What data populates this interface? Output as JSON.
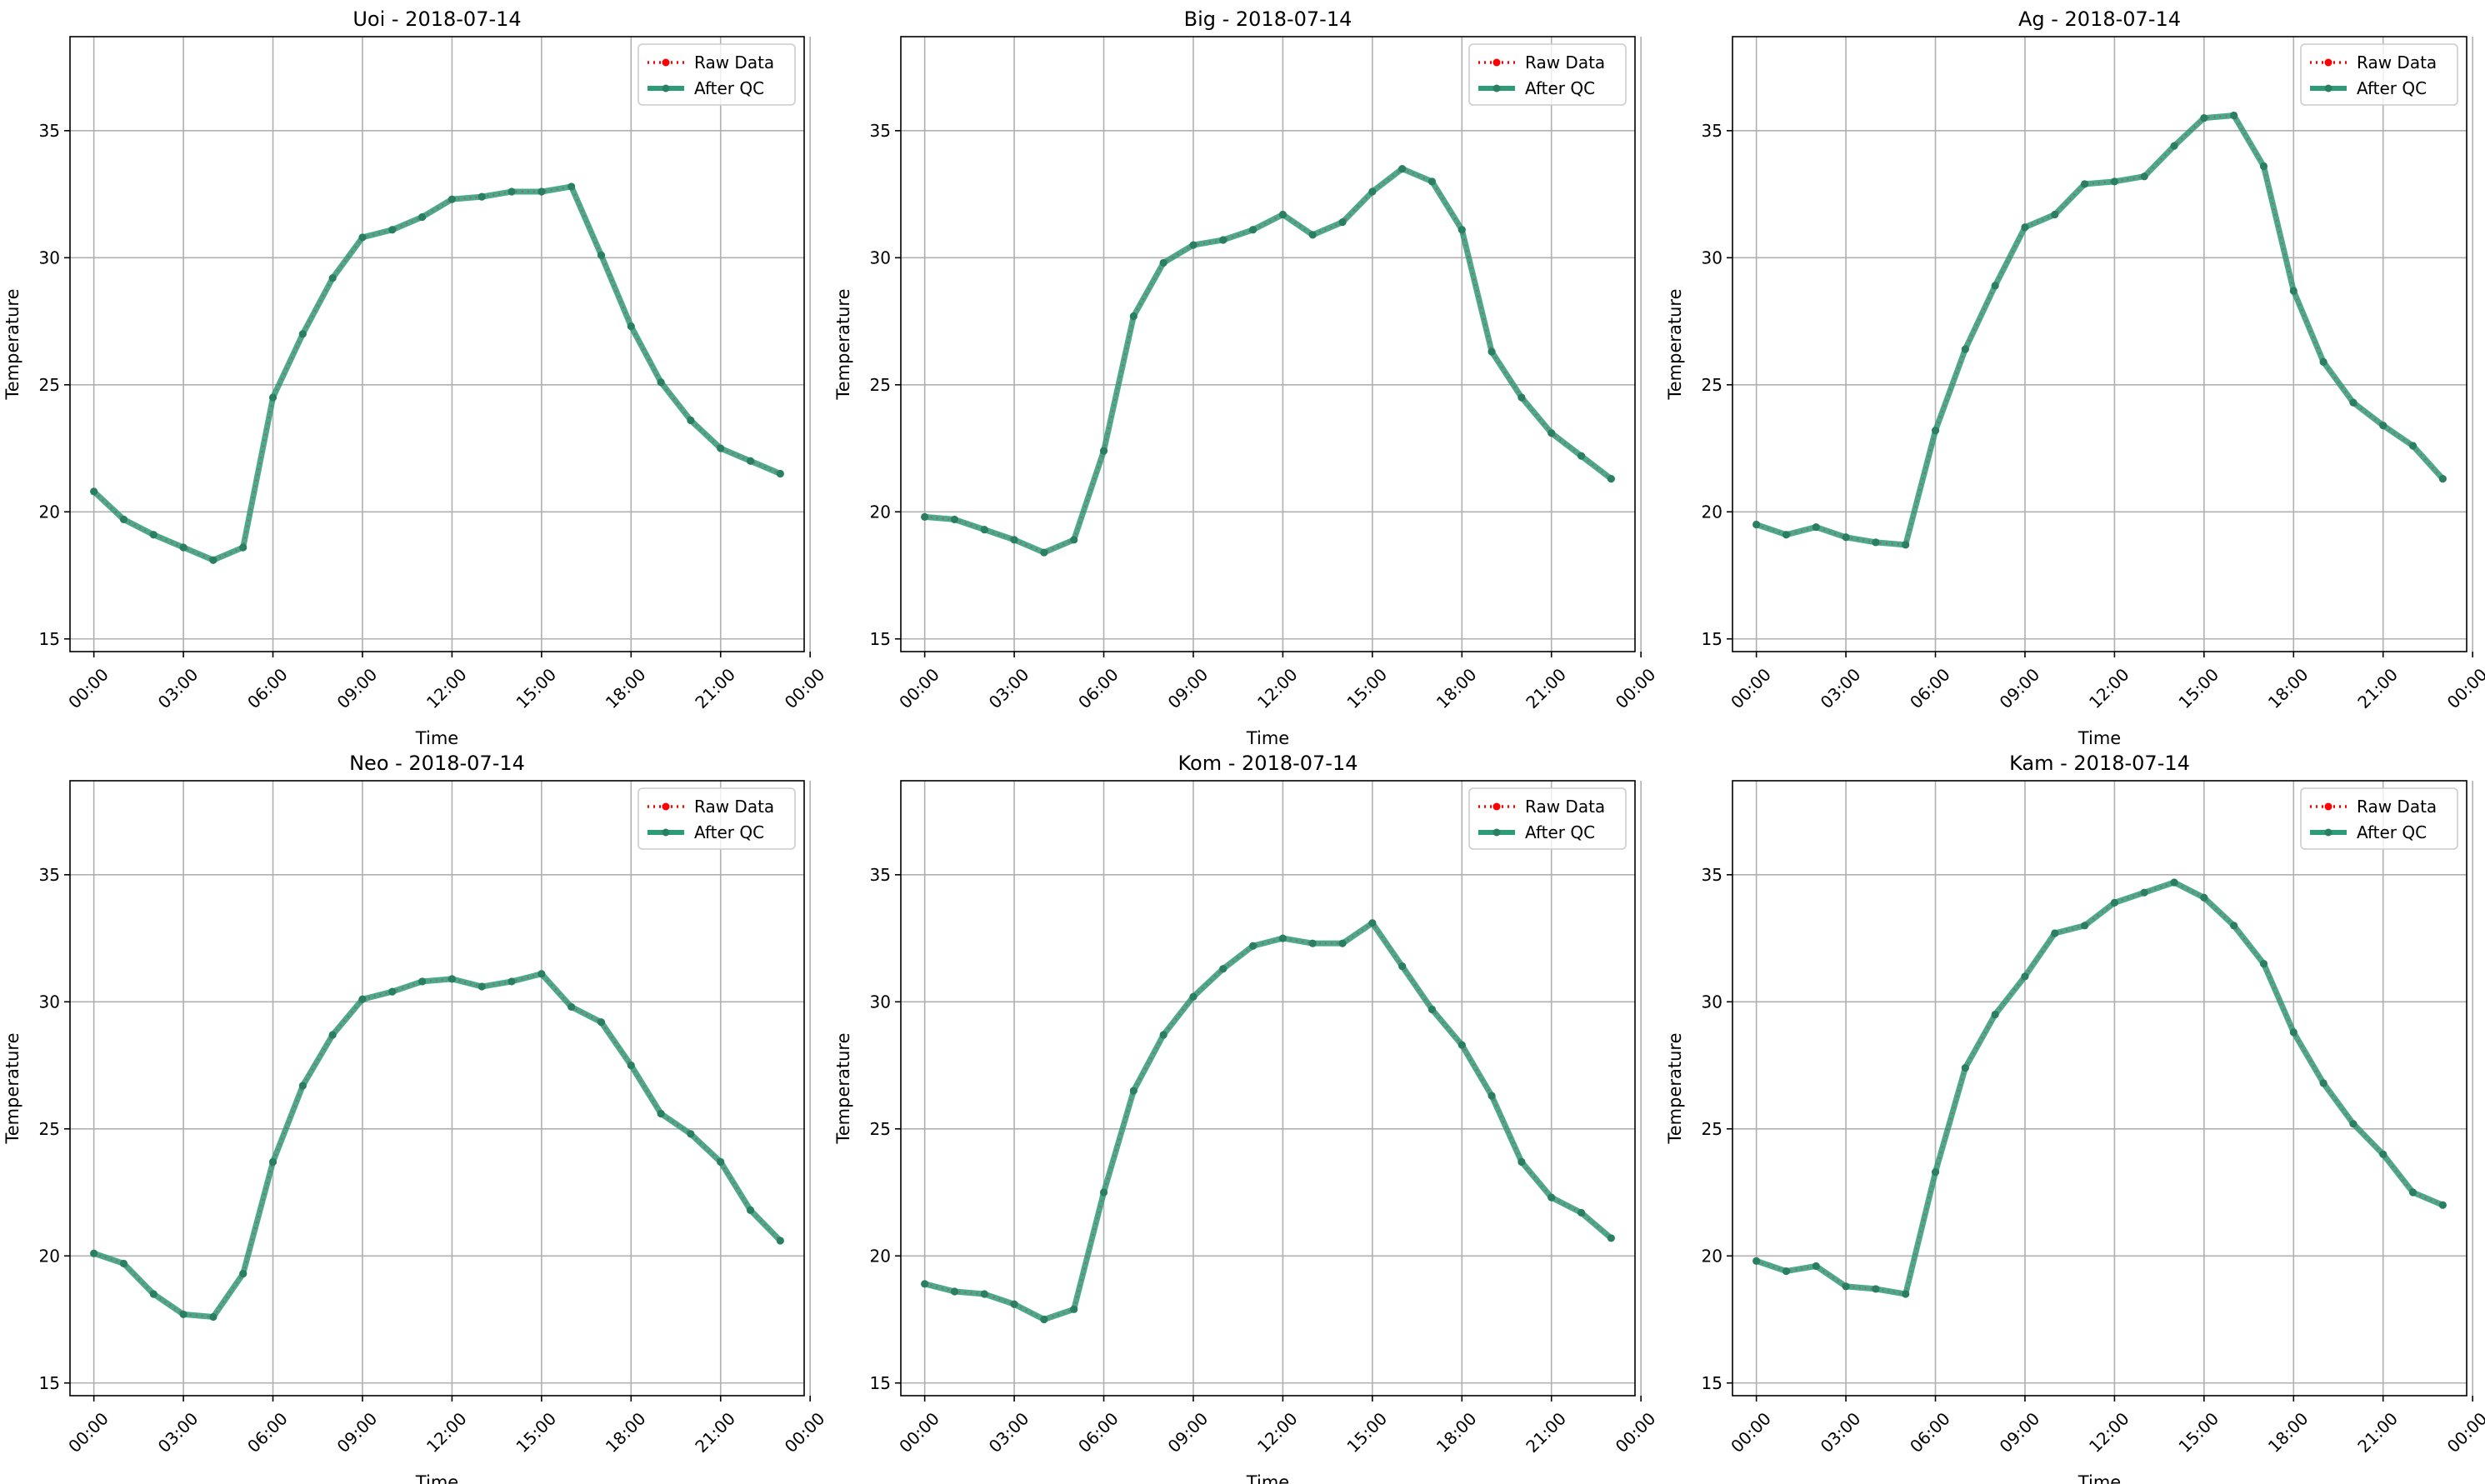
{
  "chart_data": [
    {
      "type": "line",
      "title": "Uoi - 2018-07-14",
      "xlabel": "Time",
      "ylabel": "Temperature",
      "x": [
        "00:00",
        "01:00",
        "02:00",
        "03:00",
        "04:00",
        "05:00",
        "06:00",
        "07:00",
        "08:00",
        "09:00",
        "10:00",
        "11:00",
        "12:00",
        "13:00",
        "14:00",
        "15:00",
        "16:00",
        "17:00",
        "18:00",
        "19:00",
        "20:00",
        "21:00",
        "22:00",
        "23:00"
      ],
      "xticks": [
        "00:00",
        "03:00",
        "06:00",
        "09:00",
        "12:00",
        "15:00",
        "18:00",
        "21:00",
        "00:00"
      ],
      "ylim": [
        14.5,
        38.7
      ],
      "yticks": [
        15,
        20,
        25,
        30,
        35
      ],
      "grid": true,
      "legend": "top-right",
      "series": [
        {
          "name": "Raw Data",
          "values": [
            20.8,
            19.7,
            19.1,
            18.6,
            18.1,
            18.6,
            24.5,
            27.0,
            29.2,
            30.8,
            31.1,
            31.6,
            32.3,
            32.4,
            32.6,
            32.6,
            32.8,
            30.1,
            27.3,
            25.1,
            23.6,
            22.5,
            22.0,
            21.5
          ]
        },
        {
          "name": "After QC",
          "values": [
            20.8,
            19.7,
            19.1,
            18.6,
            18.1,
            18.6,
            24.5,
            27.0,
            29.2,
            30.8,
            31.1,
            31.6,
            32.3,
            32.4,
            32.6,
            32.6,
            32.8,
            30.1,
            27.3,
            25.1,
            23.6,
            22.5,
            22.0,
            21.5
          ]
        }
      ]
    },
    {
      "type": "line",
      "title": "Big - 2018-07-14",
      "xlabel": "Time",
      "ylabel": "Temperature",
      "x": [
        "00:00",
        "01:00",
        "02:00",
        "03:00",
        "04:00",
        "05:00",
        "06:00",
        "07:00",
        "08:00",
        "09:00",
        "10:00",
        "11:00",
        "12:00",
        "13:00",
        "14:00",
        "15:00",
        "16:00",
        "17:00",
        "18:00",
        "19:00",
        "20:00",
        "21:00",
        "22:00",
        "23:00"
      ],
      "xticks": [
        "00:00",
        "03:00",
        "06:00",
        "09:00",
        "12:00",
        "15:00",
        "18:00",
        "21:00",
        "00:00"
      ],
      "ylim": [
        14.5,
        38.7
      ],
      "yticks": [
        15,
        20,
        25,
        30,
        35
      ],
      "grid": true,
      "legend": "top-right",
      "series": [
        {
          "name": "Raw Data",
          "values": [
            19.8,
            19.7,
            19.3,
            18.9,
            18.4,
            18.9,
            22.4,
            27.7,
            29.8,
            30.5,
            30.7,
            31.1,
            31.7,
            30.9,
            31.4,
            32.6,
            33.5,
            33.0,
            31.1,
            26.3,
            24.5,
            23.1,
            22.2,
            21.3
          ]
        },
        {
          "name": "After QC",
          "values": [
            19.8,
            19.7,
            19.3,
            18.9,
            18.4,
            18.9,
            22.4,
            27.7,
            29.8,
            30.5,
            30.7,
            31.1,
            31.7,
            30.9,
            31.4,
            32.6,
            33.5,
            33.0,
            31.1,
            26.3,
            24.5,
            23.1,
            22.2,
            21.3
          ]
        }
      ]
    },
    {
      "type": "line",
      "title": "Ag - 2018-07-14",
      "xlabel": "Time",
      "ylabel": "Temperature",
      "x": [
        "00:00",
        "01:00",
        "02:00",
        "03:00",
        "04:00",
        "05:00",
        "06:00",
        "07:00",
        "08:00",
        "09:00",
        "10:00",
        "11:00",
        "12:00",
        "13:00",
        "14:00",
        "15:00",
        "16:00",
        "17:00",
        "18:00",
        "19:00",
        "20:00",
        "21:00",
        "22:00",
        "23:00"
      ],
      "xticks": [
        "00:00",
        "03:00",
        "06:00",
        "09:00",
        "12:00",
        "15:00",
        "18:00",
        "21:00",
        "00:00"
      ],
      "ylim": [
        14.5,
        38.7
      ],
      "yticks": [
        15,
        20,
        25,
        30,
        35
      ],
      "grid": true,
      "legend": "top-right",
      "series": [
        {
          "name": "Raw Data",
          "values": [
            19.5,
            19.1,
            19.4,
            19.0,
            18.8,
            18.7,
            23.2,
            26.4,
            28.9,
            31.2,
            31.7,
            32.9,
            33.0,
            33.2,
            34.4,
            35.5,
            35.6,
            33.6,
            28.7,
            25.9,
            24.3,
            23.4,
            22.6,
            21.3
          ]
        },
        {
          "name": "After QC",
          "values": [
            19.5,
            19.1,
            19.4,
            19.0,
            18.8,
            18.7,
            23.2,
            26.4,
            28.9,
            31.2,
            31.7,
            32.9,
            33.0,
            33.2,
            34.4,
            35.5,
            35.6,
            33.6,
            28.7,
            25.9,
            24.3,
            23.4,
            22.6,
            21.3
          ]
        }
      ]
    },
    {
      "type": "line",
      "title": "Neo - 2018-07-14",
      "xlabel": "Time",
      "ylabel": "Temperature",
      "x": [
        "00:00",
        "01:00",
        "02:00",
        "03:00",
        "04:00",
        "05:00",
        "06:00",
        "07:00",
        "08:00",
        "09:00",
        "10:00",
        "11:00",
        "12:00",
        "13:00",
        "14:00",
        "15:00",
        "16:00",
        "17:00",
        "18:00",
        "19:00",
        "20:00",
        "21:00",
        "22:00",
        "23:00"
      ],
      "xticks": [
        "00:00",
        "03:00",
        "06:00",
        "09:00",
        "12:00",
        "15:00",
        "18:00",
        "21:00",
        "00:00"
      ],
      "ylim": [
        14.5,
        38.7
      ],
      "yticks": [
        15,
        20,
        25,
        30,
        35
      ],
      "grid": true,
      "legend": "top-right",
      "series": [
        {
          "name": "Raw Data",
          "values": [
            20.1,
            19.7,
            18.5,
            17.7,
            17.6,
            19.3,
            23.7,
            26.7,
            28.7,
            30.1,
            30.4,
            30.8,
            30.9,
            30.6,
            30.8,
            31.1,
            29.8,
            29.2,
            27.5,
            25.6,
            24.8,
            23.7,
            21.8,
            20.6
          ]
        },
        {
          "name": "After QC",
          "values": [
            20.1,
            19.7,
            18.5,
            17.7,
            17.6,
            19.3,
            23.7,
            26.7,
            28.7,
            30.1,
            30.4,
            30.8,
            30.9,
            30.6,
            30.8,
            31.1,
            29.8,
            29.2,
            27.5,
            25.6,
            24.8,
            23.7,
            21.8,
            20.6
          ]
        }
      ]
    },
    {
      "type": "line",
      "title": "Kom - 2018-07-14",
      "xlabel": "Time",
      "ylabel": "Temperature",
      "x": [
        "00:00",
        "01:00",
        "02:00",
        "03:00",
        "04:00",
        "05:00",
        "06:00",
        "07:00",
        "08:00",
        "09:00",
        "10:00",
        "11:00",
        "12:00",
        "13:00",
        "14:00",
        "15:00",
        "16:00",
        "17:00",
        "18:00",
        "19:00",
        "20:00",
        "21:00",
        "22:00",
        "23:00"
      ],
      "xticks": [
        "00:00",
        "03:00",
        "06:00",
        "09:00",
        "12:00",
        "15:00",
        "18:00",
        "21:00",
        "00:00"
      ],
      "ylim": [
        14.5,
        38.7
      ],
      "yticks": [
        15,
        20,
        25,
        30,
        35
      ],
      "grid": true,
      "legend": "top-right",
      "series": [
        {
          "name": "Raw Data",
          "values": [
            18.9,
            18.6,
            18.5,
            18.1,
            17.5,
            17.9,
            22.5,
            26.5,
            28.7,
            30.2,
            31.3,
            32.2,
            32.5,
            32.3,
            32.3,
            33.1,
            31.4,
            29.7,
            28.3,
            26.3,
            23.7,
            22.3,
            21.7,
            20.7
          ]
        },
        {
          "name": "After QC",
          "values": [
            18.9,
            18.6,
            18.5,
            18.1,
            17.5,
            17.9,
            22.5,
            26.5,
            28.7,
            30.2,
            31.3,
            32.2,
            32.5,
            32.3,
            32.3,
            33.1,
            31.4,
            29.7,
            28.3,
            26.3,
            23.7,
            22.3,
            21.7,
            20.7
          ]
        }
      ]
    },
    {
      "type": "line",
      "title": "Kam - 2018-07-14",
      "xlabel": "Time",
      "ylabel": "Temperature",
      "x": [
        "00:00",
        "01:00",
        "02:00",
        "03:00",
        "04:00",
        "05:00",
        "06:00",
        "07:00",
        "08:00",
        "09:00",
        "10:00",
        "11:00",
        "12:00",
        "13:00",
        "14:00",
        "15:00",
        "16:00",
        "17:00",
        "18:00",
        "19:00",
        "20:00",
        "21:00",
        "22:00",
        "23:00"
      ],
      "xticks": [
        "00:00",
        "03:00",
        "06:00",
        "09:00",
        "12:00",
        "15:00",
        "18:00",
        "21:00",
        "00:00"
      ],
      "ylim": [
        14.5,
        38.7
      ],
      "yticks": [
        15,
        20,
        25,
        30,
        35
      ],
      "grid": true,
      "legend": "top-right",
      "series": [
        {
          "name": "Raw Data",
          "values": [
            19.8,
            19.4,
            19.6,
            18.8,
            18.7,
            18.5,
            23.3,
            27.4,
            29.5,
            31.0,
            32.7,
            33.0,
            33.9,
            34.3,
            34.7,
            34.1,
            33.0,
            31.5,
            28.8,
            26.8,
            25.2,
            24.0,
            22.5,
            22.0
          ]
        },
        {
          "name": "After QC",
          "values": [
            19.8,
            19.4,
            19.6,
            18.8,
            18.7,
            18.5,
            23.3,
            27.4,
            29.5,
            31.0,
            32.7,
            33.0,
            33.9,
            34.3,
            34.7,
            34.1,
            33.0,
            31.5,
            28.8,
            26.8,
            25.2,
            24.0,
            22.5,
            22.0
          ]
        }
      ]
    }
  ],
  "colors": {
    "raw": "#ff0000",
    "qc": "#2d9a78",
    "qc_marker": "#2a7f62",
    "grid": "#b0b0b0"
  }
}
